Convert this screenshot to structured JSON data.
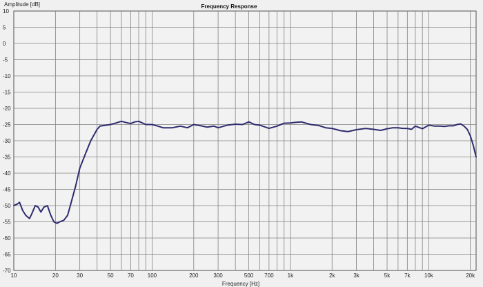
{
  "chart_data": {
    "type": "line",
    "title": "Frequency Response",
    "xlabel": "Frequency [Hz]",
    "ylabel": "Amplitude [dB]",
    "x_scale": "log",
    "xlim": [
      10,
      22000
    ],
    "ylim": [
      -70,
      10
    ],
    "grid": true,
    "x_ticks": [
      10,
      20,
      30,
      50,
      70,
      100,
      200,
      300,
      500,
      700,
      1000,
      2000,
      3000,
      5000,
      7000,
      10000,
      20000
    ],
    "x_tick_labels": [
      "10",
      "20",
      "30",
      "50",
      "70",
      "100",
      "200",
      "300",
      "500",
      "700",
      "1k",
      "2k",
      "3k",
      "5k",
      "7k",
      "10k",
      "20k"
    ],
    "y_ticks": [
      10,
      5,
      0,
      -5,
      -10,
      -15,
      -20,
      -25,
      -30,
      -35,
      -40,
      -45,
      -50,
      -55,
      -60,
      -65,
      -70
    ],
    "y_tick_labels": [
      "10",
      "5",
      "0",
      "-5",
      "-10",
      "-15",
      "-20",
      "-25",
      "-30",
      "-35",
      "-40",
      "-45",
      "-50",
      "-55",
      "-60",
      "-65",
      "-70"
    ],
    "line_color": "#2e2c6e",
    "grid_color": "#808080",
    "series": [
      {
        "x": [
          10,
          10.6,
          11,
          11.6,
          12.2,
          13,
          13.5,
          14.3,
          15,
          15.7,
          16.5,
          17.5,
          18.5,
          19.5,
          20.5,
          21.5,
          23,
          24.5,
          26,
          28,
          30,
          33,
          36,
          40,
          42,
          45,
          50,
          55,
          60,
          65,
          70,
          75,
          80,
          90,
          100,
          110,
          120,
          140,
          160,
          180,
          200,
          220,
          250,
          280,
          300,
          350,
          400,
          450,
          480,
          500,
          550,
          600,
          700,
          800,
          900,
          1000,
          1100,
          1200,
          1400,
          1600,
          1800,
          2000,
          2300,
          2600,
          3000,
          3500,
          4000,
          4500,
          5000,
          5500,
          6000,
          6500,
          7000,
          7500,
          8000,
          9000,
          10000,
          11000,
          12000,
          13000,
          14000,
          15000,
          16000,
          17000,
          18000,
          19000,
          20000,
          21000,
          22000
        ],
        "y": [
          -50,
          -49.5,
          -49,
          -51.5,
          -53,
          -54,
          -52.5,
          -50,
          -50.5,
          -52,
          -50.5,
          -50,
          -53,
          -55,
          -55.5,
          -55,
          -54.5,
          -53,
          -49,
          -44,
          -38.5,
          -34,
          -30,
          -26.5,
          -25.5,
          -25.3,
          -25,
          -24.5,
          -24,
          -24.4,
          -24.7,
          -24.2,
          -24,
          -25,
          -25,
          -25.5,
          -26,
          -26,
          -25.5,
          -26,
          -25,
          -25.3,
          -25.8,
          -25.5,
          -26,
          -25.2,
          -24.9,
          -25,
          -24.5,
          -24.2,
          -25,
          -25.2,
          -26.2,
          -25.5,
          -24.6,
          -24.5,
          -24.3,
          -24.2,
          -25,
          -25.3,
          -26,
          -26.2,
          -26.9,
          -27.2,
          -26.6,
          -26.2,
          -26.5,
          -26.8,
          -26.3,
          -26,
          -26,
          -26.2,
          -26.2,
          -26.5,
          -25.5,
          -26.3,
          -25.2,
          -25.5,
          -25.5,
          -25.6,
          -25.4,
          -25.4,
          -25,
          -24.8,
          -25.5,
          -26.5,
          -28.5,
          -31.5,
          -35
        ]
      }
    ]
  }
}
